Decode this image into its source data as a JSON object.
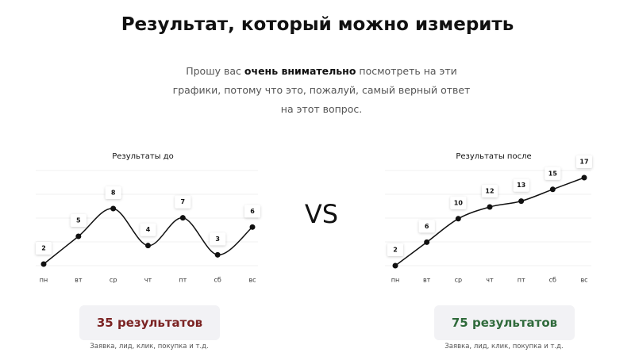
{
  "header": {
    "title": "Результат, который можно измерить"
  },
  "intro": {
    "before": "Прошу вас",
    "bold": "очень внимательно",
    "after": "посмотреть на эти графики, потому что это, пожалуй, самый верный ответ на этот вопрос."
  },
  "vs": "VS",
  "chart_data": [
    {
      "type": "line",
      "title": "Результаты до",
      "categories": [
        "пн",
        "вт",
        "ср",
        "чт",
        "пт",
        "сб",
        "вс"
      ],
      "values": [
        2,
        5,
        8,
        4,
        7,
        3,
        6
      ],
      "color": "#111111"
    },
    {
      "type": "line",
      "title": "Результаты после",
      "categories": [
        "пн",
        "вт",
        "ср",
        "чт",
        "пт",
        "сб",
        "вс"
      ],
      "values": [
        2,
        6,
        10,
        12,
        13,
        15,
        17
      ],
      "color": "#111111"
    }
  ],
  "results": [
    {
      "label": "35 результатов",
      "color": "#7b2323",
      "caption": "Заявка, лид, клик, покупка и т.д."
    },
    {
      "label": "75 результатов",
      "color": "#2f6a3b",
      "caption": "Заявка, лид, клик, покупка и т.д."
    }
  ]
}
